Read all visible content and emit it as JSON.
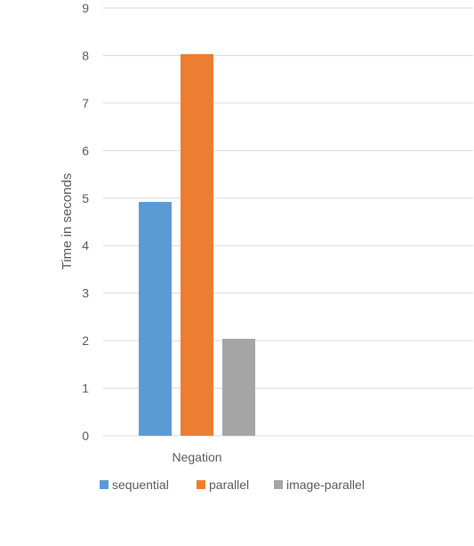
{
  "chart_data": {
    "type": "bar",
    "title": "",
    "xlabel": "",
    "ylabel": "Time in seconds",
    "categories": [
      "Negation"
    ],
    "series": [
      {
        "name": "sequential",
        "values": [
          4.92
        ],
        "color": "#5b9bd5"
      },
      {
        "name": "parallel",
        "values": [
          8.03
        ],
        "color": "#ed7d31"
      },
      {
        "name": "image-parallel",
        "values": [
          2.04
        ],
        "color": "#a5a5a5"
      }
    ],
    "ylim": [
      0,
      9
    ],
    "yticks": [
      "0",
      "1",
      "2",
      "3",
      "4",
      "5",
      "6",
      "7",
      "8",
      "9"
    ],
    "grid": true,
    "legend_position": "bottom"
  }
}
